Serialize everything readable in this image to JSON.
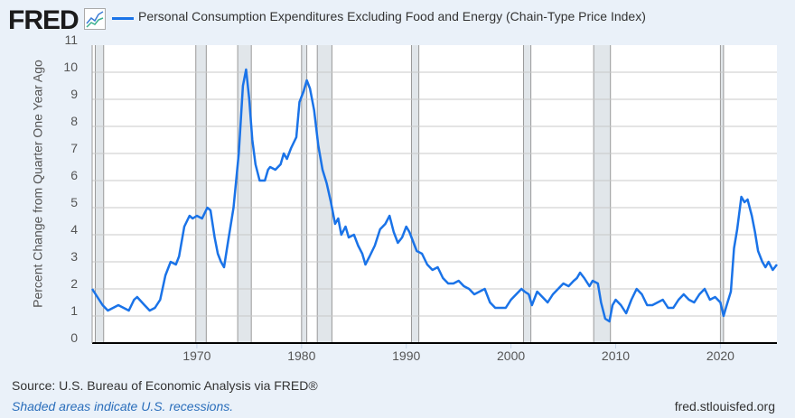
{
  "header": {
    "logo": "FRED",
    "logo_icon": "chart-icon"
  },
  "footer": {
    "source": "Source: U.S. Bureau of Economic Analysis via FRED®",
    "recession_note": "Shaded areas indicate U.S. recessions.",
    "url": "fred.stlouisfed.org"
  },
  "colors": {
    "line": "#1a73e8",
    "recession": "#e1e6ea",
    "background": "#eaf1f9"
  },
  "chart_data": {
    "type": "line",
    "title": "Personal Consumption Expenditures Excluding Food and Energy (Chain-Type Price Index)",
    "xlabel": "",
    "ylabel": "Percent Change from Quarter One Year Ago",
    "xlim": [
      1960,
      2025.4
    ],
    "ylim": [
      0,
      11
    ],
    "yticks": [
      "0",
      "1",
      "2",
      "3",
      "4",
      "5",
      "6",
      "7",
      "8",
      "9",
      "10",
      "11"
    ],
    "xticks": [
      "1970",
      "1980",
      "1990",
      "2000",
      "2010",
      "2020"
    ],
    "legend": "top",
    "grid": true,
    "recessions": [
      [
        1960.3,
        1961.1
      ],
      [
        1969.9,
        1970.9
      ],
      [
        1973.9,
        1975.2
      ],
      [
        1980.0,
        1980.5
      ],
      [
        1981.5,
        1982.9
      ],
      [
        1990.5,
        1991.2
      ],
      [
        2001.2,
        2001.9
      ],
      [
        2007.9,
        2009.5
      ],
      [
        2020.0,
        2020.3
      ]
    ],
    "series": [
      {
        "name": "Personal Consumption Expenditures Excluding Food and Energy (Chain-Type Price Index)",
        "x": [
          1960,
          1961,
          1961.5,
          1962,
          1962.5,
          1963,
          1963.5,
          1964,
          1964.3,
          1965,
          1965.5,
          1966,
          1966.5,
          1967,
          1967.5,
          1968,
          1968.3,
          1968.8,
          1969.3,
          1969.6,
          1970,
          1970.5,
          1971,
          1971.3,
          1971.7,
          1972,
          1972.3,
          1972.6,
          1973,
          1973.5,
          1974,
          1974.4,
          1974.7,
          1975,
          1975.3,
          1975.6,
          1976,
          1976.5,
          1976.8,
          1977,
          1977.5,
          1978,
          1978.3,
          1978.6,
          1979,
          1979.5,
          1979.8,
          1980.2,
          1980.5,
          1980.8,
          1981.2,
          1981.6,
          1982,
          1982.4,
          1982.8,
          1983.2,
          1983.5,
          1983.8,
          1984.2,
          1984.5,
          1985,
          1985.4,
          1985.8,
          1986.1,
          1986.5,
          1987,
          1987.5,
          1988,
          1988.4,
          1988.8,
          1989.2,
          1989.6,
          1990,
          1990.3,
          1990.7,
          1991,
          1991.5,
          1992,
          1992.5,
          1993,
          1993.5,
          1994,
          1994.5,
          1995,
          1995.5,
          1996,
          1996.5,
          1997,
          1997.5,
          1998,
          1998.5,
          1999,
          1999.5,
          2000,
          2000.5,
          2001,
          2001.3,
          2001.7,
          2002,
          2002.5,
          2003,
          2003.5,
          2004,
          2004.5,
          2005,
          2005.5,
          2006,
          2006.3,
          2006.6,
          2007,
          2007.5,
          2007.8,
          2008.3,
          2008.6,
          2009,
          2009.4,
          2009.7,
          2010,
          2010.5,
          2011,
          2011.5,
          2012,
          2012.5,
          2013,
          2013.5,
          2014,
          2014.5,
          2015,
          2015.5,
          2016,
          2016.5,
          2017,
          2017.5,
          2018,
          2018.5,
          2019,
          2019.5,
          2020,
          2020.3,
          2020.6,
          2021,
          2021.3,
          2021.6,
          2022,
          2022.3,
          2022.6,
          2023,
          2023.3,
          2023.6,
          2024,
          2024.3,
          2024.6,
          2025,
          2025.4
        ],
        "values": [
          2.0,
          1.4,
          1.2,
          1.3,
          1.4,
          1.3,
          1.2,
          1.6,
          1.7,
          1.4,
          1.2,
          1.3,
          1.6,
          2.5,
          3.0,
          2.9,
          3.2,
          4.3,
          4.7,
          4.6,
          4.7,
          4.6,
          5.0,
          4.9,
          3.9,
          3.3,
          3.0,
          2.8,
          3.8,
          5.0,
          7.0,
          9.5,
          10.1,
          9.0,
          7.5,
          6.6,
          6.0,
          6.0,
          6.4,
          6.5,
          6.4,
          6.6,
          7.0,
          6.8,
          7.2,
          7.6,
          8.9,
          9.3,
          9.7,
          9.4,
          8.6,
          7.3,
          6.4,
          5.9,
          5.2,
          4.4,
          4.6,
          4.0,
          4.3,
          3.9,
          4.0,
          3.6,
          3.3,
          2.9,
          3.2,
          3.6,
          4.2,
          4.4,
          4.7,
          4.1,
          3.7,
          3.9,
          4.3,
          4.1,
          3.7,
          3.4,
          3.3,
          2.9,
          2.7,
          2.8,
          2.4,
          2.2,
          2.2,
          2.3,
          2.1,
          2.0,
          1.8,
          1.9,
          2.0,
          1.5,
          1.3,
          1.3,
          1.3,
          1.6,
          1.8,
          2.0,
          1.9,
          1.8,
          1.4,
          1.9,
          1.7,
          1.5,
          1.8,
          2.0,
          2.2,
          2.1,
          2.3,
          2.4,
          2.6,
          2.4,
          2.1,
          2.3,
          2.2,
          1.5,
          0.9,
          0.8,
          1.4,
          1.6,
          1.4,
          1.1,
          1.6,
          2.0,
          1.8,
          1.4,
          1.4,
          1.5,
          1.6,
          1.3,
          1.3,
          1.6,
          1.8,
          1.6,
          1.5,
          1.8,
          2.0,
          1.6,
          1.7,
          1.5,
          1.0,
          1.4,
          1.9,
          3.5,
          4.2,
          5.4,
          5.2,
          5.3,
          4.7,
          4.1,
          3.4,
          3.0,
          2.8,
          3.0,
          2.7,
          2.9
        ]
      }
    ]
  }
}
